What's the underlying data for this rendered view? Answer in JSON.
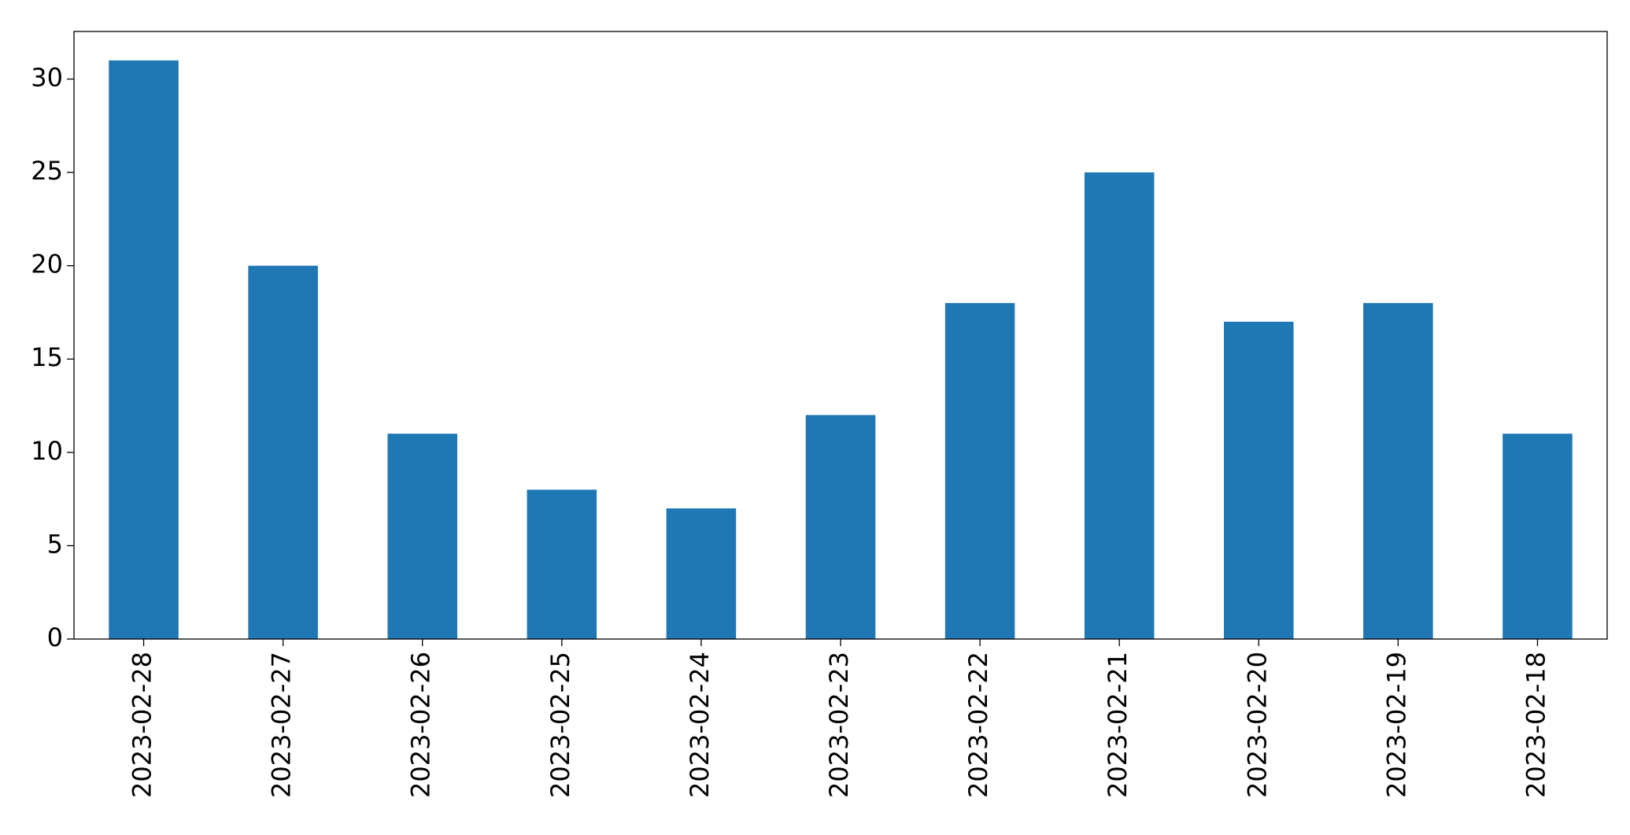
{
  "chart_data": {
    "type": "bar",
    "categories": [
      "2023-02-28",
      "2023-02-27",
      "2023-02-26",
      "2023-02-25",
      "2023-02-24",
      "2023-02-23",
      "2023-02-22",
      "2023-02-21",
      "2023-02-20",
      "2023-02-19",
      "2023-02-18"
    ],
    "values": [
      31,
      20,
      11,
      8,
      7,
      12,
      18,
      25,
      17,
      18,
      11
    ],
    "color": "#1f77b4",
    "ylim": [
      0,
      32.55
    ],
    "yticks": [
      0,
      5,
      10,
      15,
      20,
      25,
      30
    ],
    "grid": false
  }
}
